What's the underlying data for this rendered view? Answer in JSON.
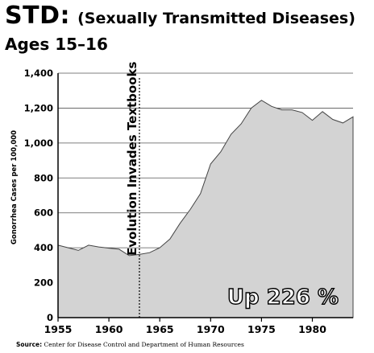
{
  "header": {
    "title": "STD:",
    "title_detail": "(Sexually Transmitted Diseases)",
    "subtitle": "Ages 15–16"
  },
  "source": {
    "label": "Source:",
    "text": "Center for Disease Control and Department of Human Resources"
  },
  "chart_data": {
    "type": "area",
    "ylabel": "Gonorrhea Cases per 100,000",
    "xlabel": "",
    "xlim": [
      1955,
      1984
    ],
    "ylim": [
      0,
      1400
    ],
    "x_ticks": [
      1955,
      1960,
      1965,
      1970,
      1975,
      1980
    ],
    "y_ticks": [
      0,
      200,
      400,
      600,
      800,
      1000,
      1200,
      1400
    ],
    "y_tick_labels": [
      "0",
      "200",
      "400",
      "600",
      "800",
      "1,000",
      "1,200",
      "1,400"
    ],
    "grid": true,
    "fill_color": "#d3d3d3",
    "series": [
      {
        "x": [
          1955,
          1956,
          1957,
          1958,
          1959,
          1960,
          1961,
          1962,
          1963,
          1964,
          1965,
          1966,
          1967,
          1968,
          1969,
          1970,
          1971,
          1972,
          1973,
          1974,
          1975,
          1976,
          1977,
          1978,
          1979,
          1980,
          1981,
          1982,
          1983,
          1984
        ],
        "values": [
          415,
          400,
          385,
          415,
          405,
          398,
          392,
          355,
          362,
          372,
          400,
          450,
          540,
          620,
          710,
          880,
          950,
          1050,
          1110,
          1200,
          1245,
          1210,
          1190,
          1190,
          1175,
          1130,
          1180,
          1135,
          1115,
          1150
        ]
      }
    ],
    "annotations": [
      {
        "text": "Evolution Invades Textbooks",
        "x": 1963,
        "style": "dashed-vertical-line"
      },
      {
        "text": "Up 226 %"
      }
    ]
  }
}
